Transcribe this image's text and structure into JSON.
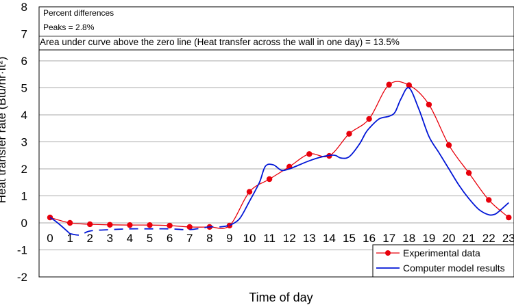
{
  "chart_data": {
    "type": "line",
    "xlabel": "Time of day",
    "ylabel": "Heat transfer rate (Btu/hr·ft²)",
    "ylim": [
      -2,
      8
    ],
    "yticks": [
      -2,
      -1,
      0,
      1,
      2,
      3,
      4,
      5,
      6,
      7,
      8
    ],
    "xticks": [
      "0",
      "1",
      "2",
      "3",
      "4",
      "5",
      "6",
      "7",
      "8",
      "9",
      "10",
      "11",
      "12",
      "13",
      "14",
      "15",
      "16",
      "17",
      "18",
      "19",
      "20",
      "21",
      "22",
      "23"
    ],
    "grid": true,
    "legend_position": "bottom-right",
    "annotations": [
      "Percent differences",
      "Peaks = 2.8%",
      "Area under curve above the zero line (Heat transfer across the wall in one day) = 13.5%"
    ],
    "series": [
      {
        "name": "Experimental data",
        "color": "#e8000b",
        "marker": "circle",
        "x": [
          0,
          1,
          2,
          3,
          4,
          5,
          6,
          7,
          8,
          9,
          10,
          11,
          12,
          13,
          14,
          15,
          16,
          17,
          18,
          19,
          20,
          21,
          22,
          23
        ],
        "values": [
          0.2,
          0.0,
          -0.05,
          -0.07,
          -0.08,
          -0.08,
          -0.1,
          -0.15,
          -0.15,
          -0.1,
          1.15,
          1.62,
          2.08,
          2.55,
          2.48,
          3.3,
          3.85,
          5.12,
          5.1,
          4.38,
          2.88,
          1.85,
          0.85,
          0.2
        ]
      },
      {
        "name": "Computer model results",
        "color": "#0015d6",
        "dashed_segment": [
          1,
          9
        ],
        "x": [
          0,
          0.3,
          0.7,
          1,
          1.5,
          2,
          3,
          4,
          5,
          6,
          7,
          8,
          8.5,
          9,
          9.5,
          10,
          10.5,
          10.8,
          11.2,
          11.6,
          12,
          12.5,
          13,
          13.5,
          14,
          14.3,
          14.6,
          15,
          15.5,
          15.8,
          16,
          16.5,
          17,
          17.3,
          17.6,
          18,
          18.5,
          19,
          19.5,
          20,
          20.5,
          21,
          21.5,
          22,
          22.3,
          22.5,
          22.7,
          23
        ],
        "values": [
          0.2,
          0.05,
          -0.2,
          -0.4,
          -0.45,
          -0.3,
          -0.25,
          -0.22,
          -0.22,
          -0.22,
          -0.25,
          -0.15,
          -0.15,
          -0.1,
          0.15,
          0.8,
          1.5,
          2.1,
          2.15,
          1.95,
          2.0,
          2.15,
          2.3,
          2.42,
          2.5,
          2.5,
          2.4,
          2.45,
          2.9,
          3.3,
          3.5,
          3.85,
          3.95,
          4.1,
          4.6,
          5.0,
          4.2,
          3.2,
          2.6,
          2.0,
          1.4,
          0.9,
          0.5,
          0.3,
          0.32,
          0.42,
          0.55,
          0.75
        ]
      }
    ]
  }
}
